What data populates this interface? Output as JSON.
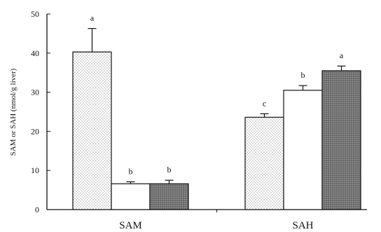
{
  "chart_data": {
    "type": "bar",
    "categories": [
      "SAM",
      "SAH"
    ],
    "series": [
      {
        "values": [
          40.3,
          23.6
        ],
        "errors": [
          6.0,
          0.9
        ],
        "letters": [
          "a",
          "c"
        ],
        "pattern": "dotted"
      },
      {
        "values": [
          6.6,
          30.5
        ],
        "errors": [
          0.5,
          1.2
        ],
        "letters": [
          "b",
          "b"
        ],
        "pattern": "white"
      },
      {
        "values": [
          6.6,
          35.5
        ],
        "errors": [
          0.9,
          1.2
        ],
        "letters": [
          "b",
          "a"
        ],
        "pattern": "dark-dotted"
      }
    ],
    "ylabel": "SAM or SAH (nmol/g liver)",
    "xlabel": "",
    "ylim": [
      0,
      50
    ],
    "yticks": [
      0,
      10,
      20,
      30,
      40,
      50
    ],
    "grid": false,
    "legend": "none"
  }
}
